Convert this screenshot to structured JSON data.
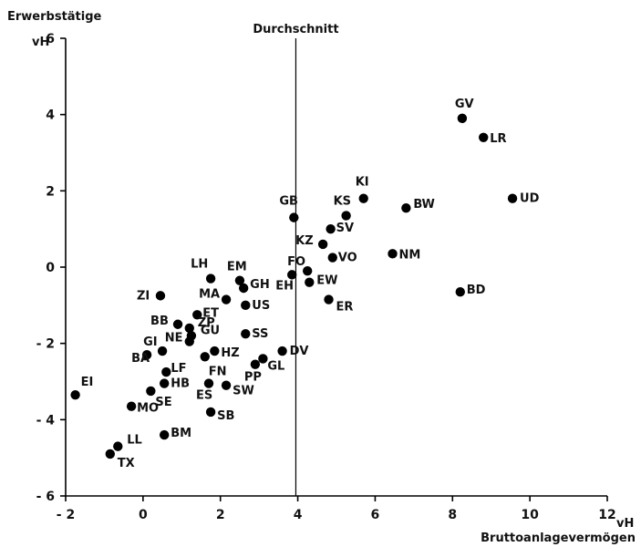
{
  "chart_data": {
    "type": "scatter",
    "title": "",
    "ylabel": "Erwerbstätige",
    "y_unit": "vH",
    "xlabel": "Bruttoanlagevermögen",
    "x_unit": "vH",
    "xlim": [
      -2,
      12
    ],
    "ylim": [
      -6,
      6
    ],
    "x_ticks": [
      "- 2",
      "0",
      "2",
      "4",
      "6",
      "8",
      "10",
      "12"
    ],
    "y_ticks": [
      "- 6",
      "- 4",
      "- 2",
      "0",
      "2",
      "4",
      "6"
    ],
    "reference_line": {
      "label": "Durchschnitt",
      "x": 3.95
    },
    "grid": false,
    "points": [
      {
        "label": "GV",
        "x": 8.25,
        "y": 3.9
      },
      {
        "label": "LR",
        "x": 8.8,
        "y": 3.4
      },
      {
        "label": "UD",
        "x": 9.55,
        "y": 1.8
      },
      {
        "label": "KI",
        "x": 5.7,
        "y": 1.8
      },
      {
        "label": "BW",
        "x": 6.8,
        "y": 1.55
      },
      {
        "label": "KS",
        "x": 5.25,
        "y": 1.35
      },
      {
        "label": "GB",
        "x": 3.9,
        "y": 1.3
      },
      {
        "label": "SV",
        "x": 4.85,
        "y": 1.0
      },
      {
        "label": "KZ",
        "x": 4.65,
        "y": 0.6
      },
      {
        "label": "NM",
        "x": 6.45,
        "y": 0.35
      },
      {
        "label": "VO",
        "x": 4.9,
        "y": 0.25
      },
      {
        "label": "FO",
        "x": 4.25,
        "y": -0.1
      },
      {
        "label": "EH",
        "x": 3.85,
        "y": -0.2
      },
      {
        "label": "EW",
        "x": 4.3,
        "y": -0.4
      },
      {
        "label": "BD",
        "x": 8.2,
        "y": -0.65
      },
      {
        "label": "ER",
        "x": 4.8,
        "y": -0.85
      },
      {
        "label": "LH",
        "x": 1.75,
        "y": -0.3
      },
      {
        "label": "EM",
        "x": 2.5,
        "y": -0.35
      },
      {
        "label": "GH",
        "x": 2.6,
        "y": -0.55
      },
      {
        "label": "ZI",
        "x": 0.45,
        "y": -0.75
      },
      {
        "label": "MA",
        "x": 2.15,
        "y": -0.85
      },
      {
        "label": "US",
        "x": 2.65,
        "y": -1.0
      },
      {
        "label": "ET",
        "x": 1.4,
        "y": -1.25
      },
      {
        "label": "BB",
        "x": 0.9,
        "y": -1.5
      },
      {
        "label": "ZP",
        "x": 1.2,
        "y": -1.6
      },
      {
        "label": "SS",
        "x": 2.65,
        "y": -1.75
      },
      {
        "label": "GU",
        "x": 1.25,
        "y": -1.8
      },
      {
        "label": "NE",
        "x": 1.2,
        "y": -1.95
      },
      {
        "label": "GI",
        "x": 0.1,
        "y": -2.3
      },
      {
        "label": "BA",
        "x": 0.5,
        "y": -2.2
      },
      {
        "label": "HZ",
        "x": 1.85,
        "y": -2.2
      },
      {
        "label": "DV",
        "x": 3.6,
        "y": -2.2
      },
      {
        "label": "FN",
        "x": 1.6,
        "y": -2.35
      },
      {
        "label": "GL",
        "x": 3.1,
        "y": -2.4
      },
      {
        "label": "PP",
        "x": 2.9,
        "y": -2.55
      },
      {
        "label": "LF",
        "x": 0.6,
        "y": -2.75
      },
      {
        "label": "EI",
        "x": -1.75,
        "y": -3.35
      },
      {
        "label": "HB",
        "x": 0.55,
        "y": -3.05
      },
      {
        "label": "ES",
        "x": 1.7,
        "y": -3.05
      },
      {
        "label": "SW",
        "x": 2.15,
        "y": -3.1
      },
      {
        "label": "SE",
        "x": 0.2,
        "y": -3.25
      },
      {
        "label": "MO",
        "x": -0.3,
        "y": -3.65
      },
      {
        "label": "SB",
        "x": 1.75,
        "y": -3.8
      },
      {
        "label": "BM",
        "x": 0.55,
        "y": -4.4
      },
      {
        "label": "LL",
        "x": -0.65,
        "y": -4.7
      },
      {
        "label": "TX",
        "x": -0.85,
        "y": -4.9
      }
    ]
  }
}
